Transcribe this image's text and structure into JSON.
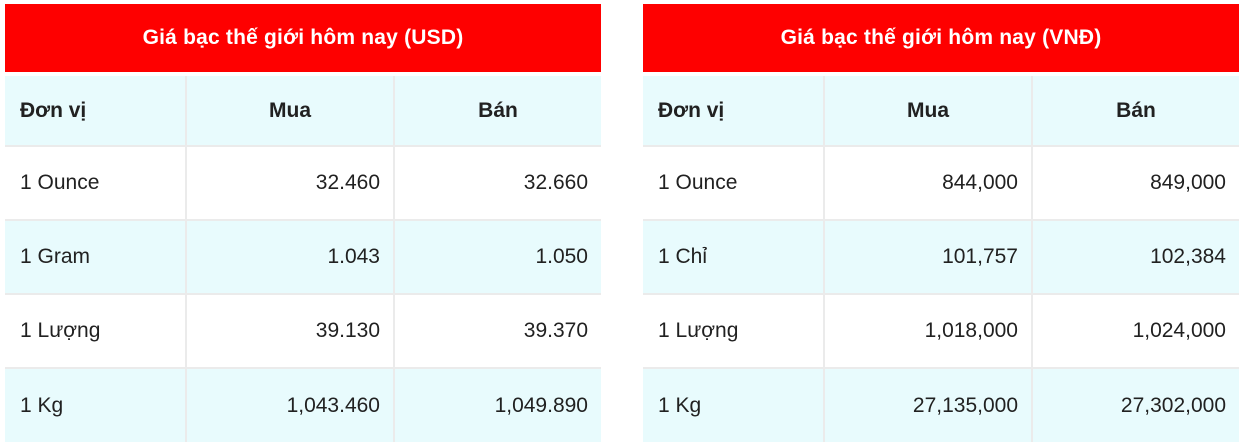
{
  "colors": {
    "header_red": "#fe0000",
    "title_text": "#ffffff",
    "row_cyan": "#e8fbfd",
    "row_white": "#ffffff",
    "border_gray": "#ebebeb",
    "text_dark": "#212121"
  },
  "tables": [
    {
      "title": "Giá bạc thế giới hôm nay (USD)",
      "columns": [
        "Đơn vị",
        "Mua",
        "Bán"
      ],
      "rows": [
        {
          "unit": "1 Ounce",
          "mua": "32.460",
          "ban": "32.660"
        },
        {
          "unit": "1 Gram",
          "mua": "1.043",
          "ban": "1.050"
        },
        {
          "unit": "1 Lượng",
          "mua": "39.130",
          "ban": "39.370"
        },
        {
          "unit": "1 Kg",
          "mua": "1,043.460",
          "ban": "1,049.890"
        }
      ]
    },
    {
      "title": "Giá bạc thế giới hôm nay (VNĐ)",
      "columns": [
        "Đơn vị",
        "Mua",
        "Bán"
      ],
      "rows": [
        {
          "unit": "1 Ounce",
          "mua": "844,000",
          "ban": "849,000"
        },
        {
          "unit": "1 Chỉ",
          "mua": "101,757",
          "ban": "102,384"
        },
        {
          "unit": "1 Lượng",
          "mua": "1,018,000",
          "ban": "1,024,000"
        },
        {
          "unit": "1 Kg",
          "mua": "27,135,000",
          "ban": "27,302,000"
        }
      ]
    }
  ]
}
